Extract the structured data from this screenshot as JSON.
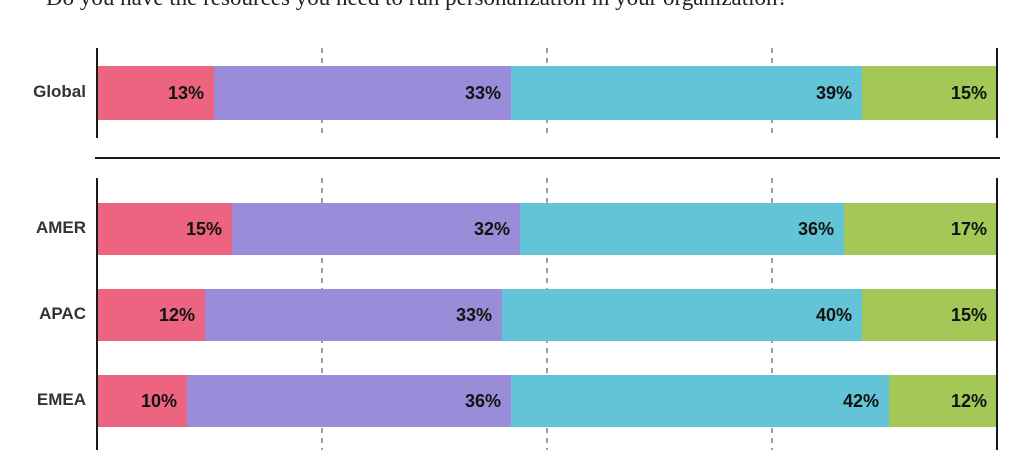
{
  "chart_data": {
    "type": "bar",
    "orientation": "horizontal",
    "stacked": true,
    "title": "Do you have the resources you need to run personalization in your organization?",
    "x_range": [
      0,
      100
    ],
    "gridlines_pct": [
      25,
      50,
      75
    ],
    "value_suffix": "%",
    "segment_colors": [
      "#ED6480",
      "#9A8CD8",
      "#63C3D7",
      "#A3C857"
    ],
    "segment_color_names": [
      "pink",
      "purple",
      "teal",
      "green"
    ],
    "legend": "none",
    "groups": [
      {
        "rows": [
          {
            "label": "Global",
            "values": [
              13,
              33,
              39,
              15
            ]
          }
        ]
      },
      {
        "rows": [
          {
            "label": "AMER",
            "values": [
              15,
              32,
              36,
              17
            ]
          },
          {
            "label": "APAC",
            "values": [
              12,
              33,
              40,
              15
            ]
          },
          {
            "label": "EMEA",
            "values": [
              10,
              36,
              42,
              12
            ]
          }
        ]
      }
    ]
  }
}
